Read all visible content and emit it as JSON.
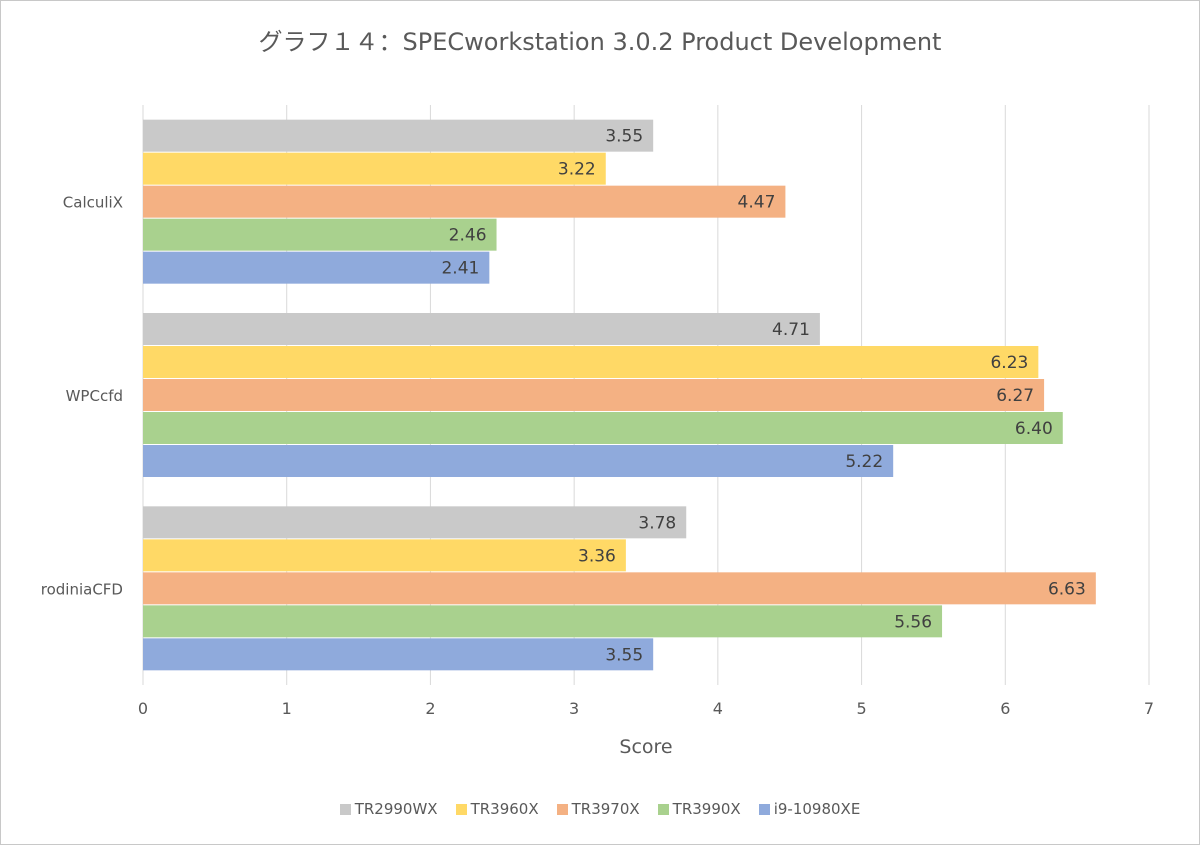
{
  "chart_data": {
    "type": "bar",
    "orientation": "horizontal",
    "title": "グラフ１４：SPECworkstation 3.0.2 Product Development",
    "xlabel": "Score",
    "ylabel": "",
    "xlim": [
      0,
      7
    ],
    "xticks": [
      "0",
      "1",
      "2",
      "3",
      "4",
      "5",
      "6",
      "7"
    ],
    "grid": true,
    "legend_position": "bottom",
    "categories": [
      "CalculiX",
      "WPCcfd",
      "rodiniaCFD"
    ],
    "series": [
      {
        "name": "TR2990WX",
        "color": "#c9c9c9",
        "values": [
          3.55,
          4.71,
          3.78
        ],
        "labels": [
          "3.55",
          "4.71",
          "3.78"
        ]
      },
      {
        "name": "TR3960X",
        "color": "#ffd966",
        "values": [
          3.22,
          6.23,
          3.36
        ],
        "labels": [
          "3.22",
          "6.23",
          "3.36"
        ]
      },
      {
        "name": "TR3970X",
        "color": "#f4b183",
        "values": [
          4.47,
          6.27,
          6.63
        ],
        "labels": [
          "4.47",
          "6.27",
          "6.63"
        ]
      },
      {
        "name": "TR3990X",
        "color": "#a9d18e",
        "values": [
          2.46,
          6.4,
          5.56
        ],
        "labels": [
          "2.46",
          "6.40",
          "5.56"
        ]
      },
      {
        "name": "i9-10980XE",
        "color": "#8faadc",
        "values": [
          2.41,
          5.22,
          3.55
        ],
        "labels": [
          "2.41",
          "5.22",
          "3.55"
        ]
      }
    ]
  }
}
